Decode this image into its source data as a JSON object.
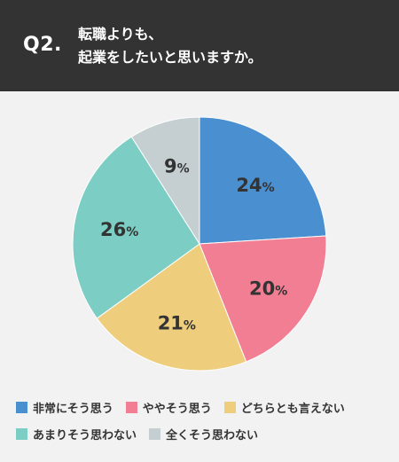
{
  "header": {
    "question_number": "Q2.",
    "question_line1": "転職よりも、",
    "question_line2": "起業をしたいと思いますか。"
  },
  "chart_data": {
    "type": "pie",
    "categories": [
      "非常にそう思う",
      "ややそう思う",
      "どちらとも言えない",
      "あまりそう思わない",
      "全くそう思わない"
    ],
    "values": [
      24,
      20,
      21,
      26,
      9
    ],
    "unit": "%",
    "colors": [
      "#4a8fd0",
      "#f27e93",
      "#eecd7c",
      "#7ccec4",
      "#c5cfd2"
    ],
    "start": "12 o'clock, clockwise",
    "legend_position": "bottom"
  }
}
